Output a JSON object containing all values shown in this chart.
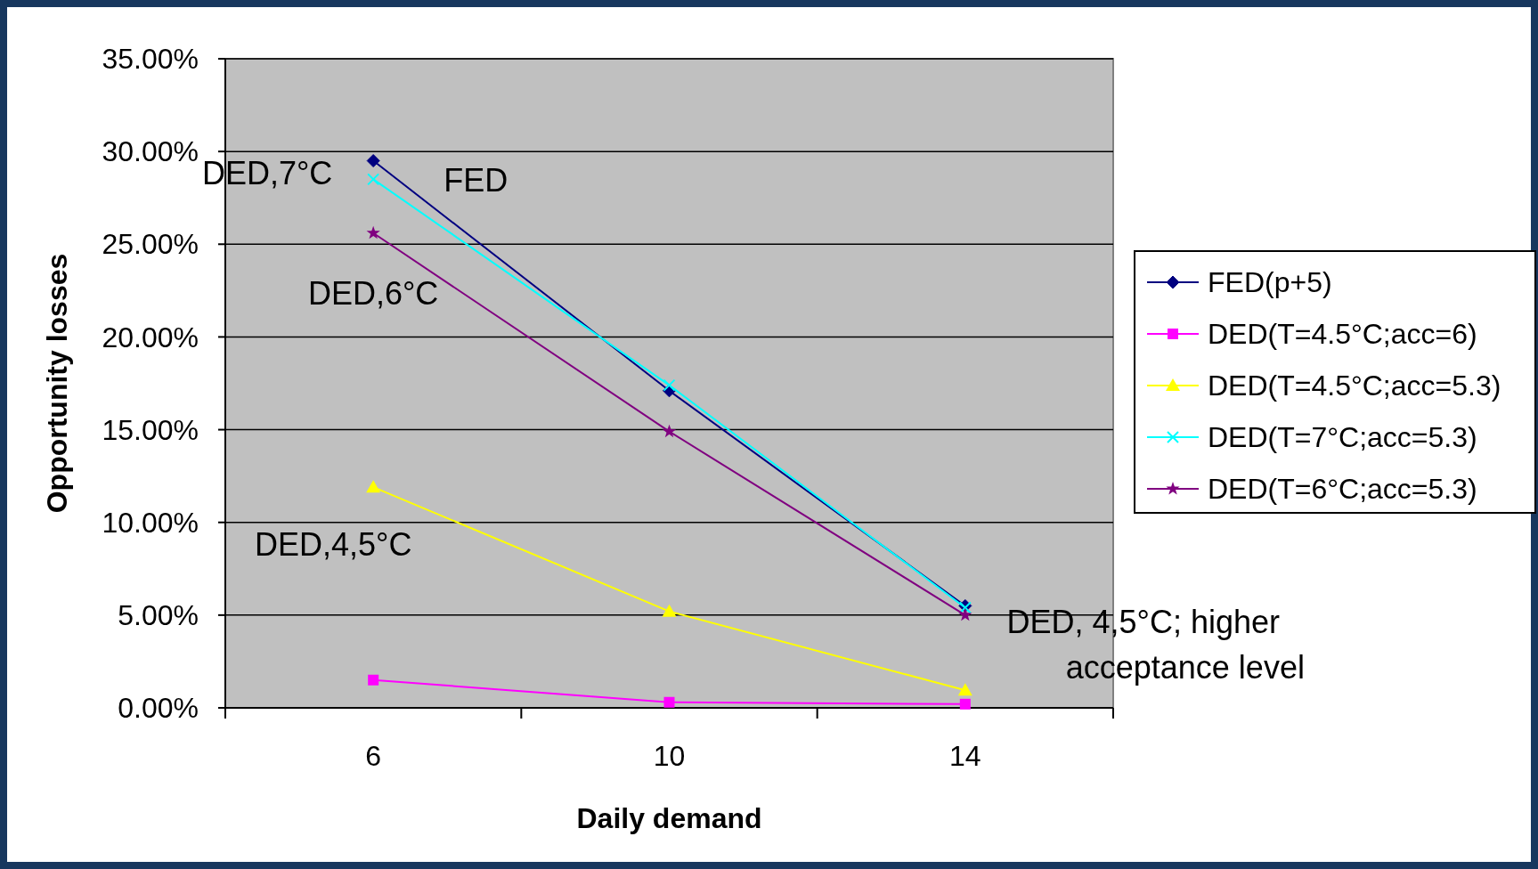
{
  "chart_data": {
    "type": "line",
    "xlabel": "Daily demand",
    "ylabel": "Opportunity losses",
    "categories": [
      "6",
      "10",
      "14"
    ],
    "series": [
      {
        "name": "FED(p+5)",
        "color": "#000080",
        "marker": "diamond",
        "values": [
          29.5,
          17.1,
          5.5
        ]
      },
      {
        "name": "DED(T=4.5°C;acc=6)",
        "color": "#ff00ff",
        "marker": "square",
        "values": [
          1.5,
          0.3,
          0.2
        ]
      },
      {
        "name": "DED(T=4.5°C;acc=5.3)",
        "color": "#ffff00",
        "marker": "triangle",
        "values": [
          11.9,
          5.2,
          0.95
        ]
      },
      {
        "name": "DED(T=7°C;acc=5.3)",
        "color": "#00ffff",
        "marker": "cross",
        "values": [
          28.5,
          17.4,
          5.4
        ]
      },
      {
        "name": "DED(T=6°C;acc=5.3)",
        "color": "#800080",
        "marker": "star",
        "values": [
          25.6,
          14.9,
          5.0
        ]
      }
    ],
    "ylim": [
      0,
      35
    ],
    "yticks": [
      {
        "value": 0,
        "label": "0.00%"
      },
      {
        "value": 5,
        "label": "5.00%"
      },
      {
        "value": 10,
        "label": "10.00%"
      },
      {
        "value": 15,
        "label": "15.00%"
      },
      {
        "value": 20,
        "label": "20.00%"
      },
      {
        "value": 25,
        "label": "25.00%"
      },
      {
        "value": 30,
        "label": "30.00%"
      },
      {
        "value": 35,
        "label": "35.00%"
      }
    ],
    "grid": "y",
    "legend": "right",
    "annotations": [
      {
        "text": "DED,7°C",
        "x": "6",
        "y": 28.5
      },
      {
        "text": "FED",
        "x": "6",
        "y": 29.5
      },
      {
        "text": "DED,6°C",
        "x": "6",
        "y": 25.6
      },
      {
        "text": "DED,4,5°C",
        "x": "6",
        "y": 11.9
      },
      {
        "text": "DED, 4,5°C; higher acceptance level",
        "x": "14",
        "y": 5.0
      }
    ]
  }
}
